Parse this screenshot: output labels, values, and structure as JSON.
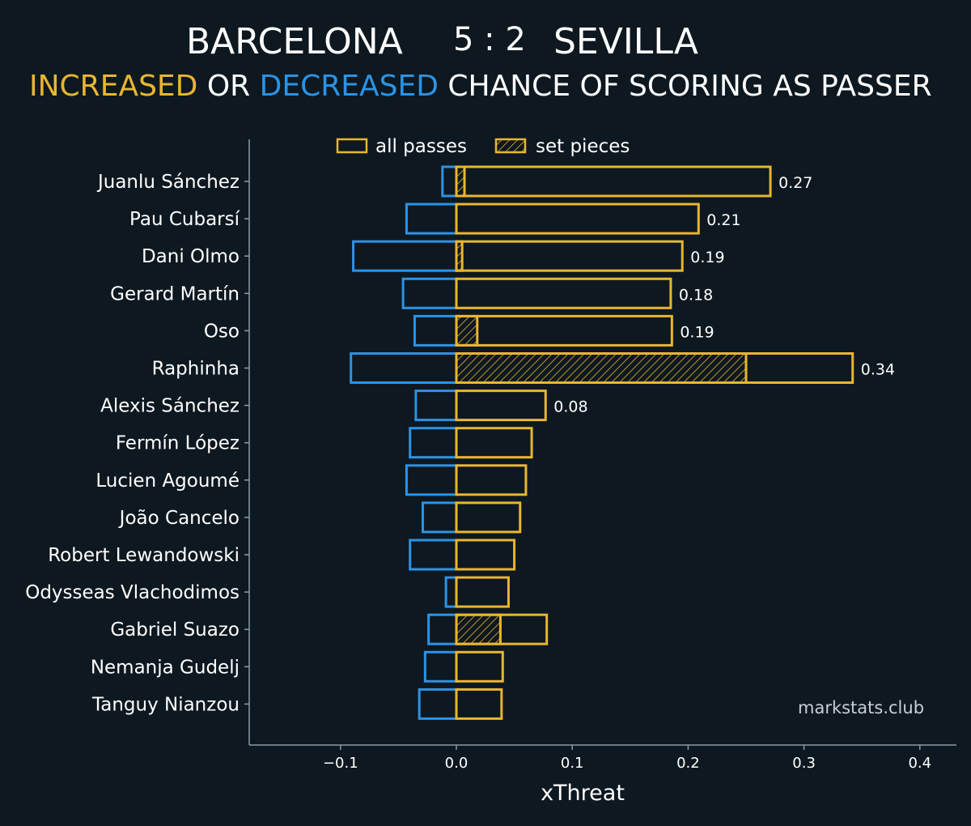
{
  "header": {
    "home_team": "BARCELONA",
    "score": "5 : 2",
    "away_team": "SEVILLA",
    "subtitle_increased": "INCREASED",
    "subtitle_or": " OR ",
    "subtitle_decreased": "DECREASED",
    "subtitle_rest": " CHANCE OF SCORING AS PASSER"
  },
  "watermark": "markstats.club",
  "colors": {
    "background": "#0e1820",
    "increased": "#e8b62f",
    "decreased": "#2b93e6",
    "axis": "#8a9aa6"
  },
  "chart_data": {
    "type": "bar",
    "orientation": "horizontal",
    "xlabel": "xThreat",
    "xlim": [
      -0.18,
      0.43
    ],
    "xticks": [
      -0.1,
      0.0,
      0.1,
      0.2,
      0.3,
      0.4
    ],
    "xtick_labels": [
      "−0.1",
      "0.0",
      "0.1",
      "0.2",
      "0.3",
      "0.4"
    ],
    "legend": {
      "placement": "top-center",
      "all_passes": "all passes",
      "set_pieces": "set pieces"
    },
    "categories": [
      "Juanlu Sánchez",
      "Pau Cubarsí",
      "Dani Olmo",
      "Gerard Martín",
      "Oso",
      "Raphinha",
      "Alexis Sánchez",
      "Fermín López",
      "Lucien Agoumé",
      "João Cancelo",
      "Robert Lewandowski",
      "Odysseas Vlachodimos",
      "Gabriel Suazo",
      "Nemanja Gudelj",
      "Tanguy Nianzou"
    ],
    "series": [
      {
        "name": "increased (all passes)",
        "values": [
          0.271,
          0.209,
          0.195,
          0.185,
          0.186,
          0.342,
          0.077,
          0.065,
          0.06,
          0.055,
          0.05,
          0.045,
          0.078,
          0.04,
          0.039
        ]
      },
      {
        "name": "decreased (all passes)",
        "values": [
          -0.012,
          -0.043,
          -0.089,
          -0.046,
          -0.036,
          -0.091,
          -0.035,
          -0.04,
          -0.043,
          -0.029,
          -0.04,
          -0.009,
          -0.024,
          -0.027,
          -0.032
        ]
      },
      {
        "name": "increased (set pieces)",
        "values": [
          0.007,
          0,
          0.005,
          0,
          0.018,
          0.25,
          0,
          0,
          0,
          0,
          0,
          0,
          0.038,
          0,
          0
        ]
      }
    ],
    "net_labels": [
      "0.27",
      "0.21",
      "0.19",
      "0.18",
      "0.19",
      "0.34",
      "0.08",
      "",
      "",
      "",
      "",
      "",
      "",
      "",
      ""
    ]
  }
}
